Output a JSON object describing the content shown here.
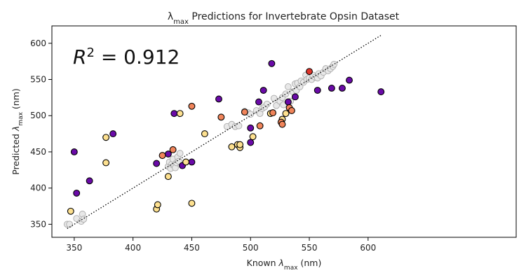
{
  "chart_data": {
    "type": "scatter",
    "title": "λmax Predictions for Invertebrate Opsin Dataset",
    "title_parts": {
      "symbol": "λ",
      "subscript": "max",
      "rest": " Predictions for Invertebrate Opsin Dataset"
    },
    "xlabel": "Known λmax (nm)",
    "xlabel_parts": {
      "prefix": "Known ",
      "symbol": "λ",
      "subscript": "max",
      "suffix": " (nm)"
    },
    "ylabel": "Predicted λmax (nm)",
    "ylabel_parts": {
      "prefix": "Predicted ",
      "symbol": "λ",
      "subscript": "max",
      "suffix": " (nm)"
    },
    "annotation": "R² = 0.912",
    "annotation_parts": {
      "base": "R",
      "sup": "2",
      "rest": " = 0.912"
    },
    "xlim": [
      331,
      726
    ],
    "ylim": [
      332,
      624
    ],
    "xticks": [
      350,
      400,
      450,
      500,
      550,
      600
    ],
    "yticks": [
      350,
      400,
      450,
      500,
      550,
      600
    ],
    "grid": false,
    "fit_line": {
      "x": [
        344,
        611
      ],
      "y": [
        344,
        611
      ],
      "style": "dotted",
      "color": "#000000"
    },
    "colors": {
      "gray_fill": "#e8e8e8",
      "gray_edge": "#aaaaaa",
      "purple": "#6a0aa8",
      "cream": "#fde08f",
      "orange": "#f0845a",
      "red": "#e0352b",
      "edge": "#000000"
    },
    "series": [
      {
        "color_key": "gray",
        "points": [
          [
            344,
            350
          ],
          [
            346,
            350
          ],
          [
            352,
            358
          ],
          [
            356,
            354
          ],
          [
            357,
            364
          ],
          [
            358,
            357
          ],
          [
            430,
            430
          ],
          [
            431,
            436
          ],
          [
            432,
            427
          ],
          [
            433,
            433
          ],
          [
            434,
            440
          ],
          [
            435,
            431
          ],
          [
            436,
            428
          ],
          [
            437,
            435
          ],
          [
            438,
            443
          ],
          [
            439,
            437
          ],
          [
            440,
            448
          ],
          [
            480,
            485
          ],
          [
            484,
            488
          ],
          [
            487,
            485
          ],
          [
            490,
            486
          ],
          [
            495,
            506
          ],
          [
            498,
            504
          ],
          [
            500,
            502
          ],
          [
            505,
            507
          ],
          [
            508,
            503
          ],
          [
            510,
            510
          ],
          [
            512,
            512
          ],
          [
            514,
            516
          ],
          [
            520,
            524
          ],
          [
            522,
            514
          ],
          [
            525,
            520
          ],
          [
            527,
            525
          ],
          [
            528,
            515
          ],
          [
            530,
            530
          ],
          [
            532,
            540
          ],
          [
            534,
            520
          ],
          [
            536,
            533
          ],
          [
            538,
            544
          ],
          [
            539,
            535
          ],
          [
            540,
            545
          ],
          [
            542,
            540
          ],
          [
            543,
            548
          ],
          [
            545,
            546
          ],
          [
            547,
            556
          ],
          [
            548,
            550
          ],
          [
            550,
            552
          ],
          [
            552,
            550
          ],
          [
            553,
            556
          ],
          [
            555,
            553
          ],
          [
            557,
            552
          ],
          [
            558,
            558
          ],
          [
            560,
            555
          ],
          [
            562,
            560
          ],
          [
            564,
            565
          ],
          [
            566,
            562
          ],
          [
            568,
            565
          ],
          [
            570,
            568
          ],
          [
            571,
            571
          ]
        ]
      },
      {
        "color_key": "purple",
        "points": [
          [
            350,
            450
          ],
          [
            352,
            393
          ],
          [
            363,
            410
          ],
          [
            383,
            475
          ],
          [
            420,
            434
          ],
          [
            430,
            447
          ],
          [
            435,
            503
          ],
          [
            442,
            431
          ],
          [
            450,
            436
          ],
          [
            473,
            523
          ],
          [
            500,
            483
          ],
          [
            500,
            463
          ],
          [
            507,
            519
          ],
          [
            511,
            535
          ],
          [
            518,
            572
          ],
          [
            532,
            519
          ],
          [
            538,
            526
          ],
          [
            557,
            535
          ],
          [
            569,
            538
          ],
          [
            578,
            538
          ],
          [
            584,
            549
          ],
          [
            611,
            533
          ]
        ]
      },
      {
        "color_key": "cream",
        "points": [
          [
            347,
            368
          ],
          [
            377,
            470
          ],
          [
            377,
            435
          ],
          [
            420,
            371
          ],
          [
            421,
            377
          ],
          [
            430,
            416
          ],
          [
            440,
            503
          ],
          [
            445,
            436
          ],
          [
            450,
            379
          ],
          [
            461,
            475
          ],
          [
            484,
            457
          ],
          [
            489,
            460
          ],
          [
            491,
            456
          ],
          [
            491,
            460
          ],
          [
            502,
            471
          ],
          [
            517,
            503
          ],
          [
            527,
            495
          ],
          [
            530,
            503
          ]
        ]
      },
      {
        "color_key": "orange",
        "points": [
          [
            425,
            445
          ],
          [
            434,
            453
          ],
          [
            450,
            513
          ],
          [
            475,
            498
          ],
          [
            495,
            505
          ],
          [
            508,
            486
          ],
          [
            519,
            504
          ],
          [
            526,
            491
          ],
          [
            527,
            488
          ],
          [
            533,
            511
          ],
          [
            535,
            507
          ]
        ]
      },
      {
        "color_key": "red",
        "points": [
          [
            550,
            561
          ]
        ]
      }
    ]
  }
}
